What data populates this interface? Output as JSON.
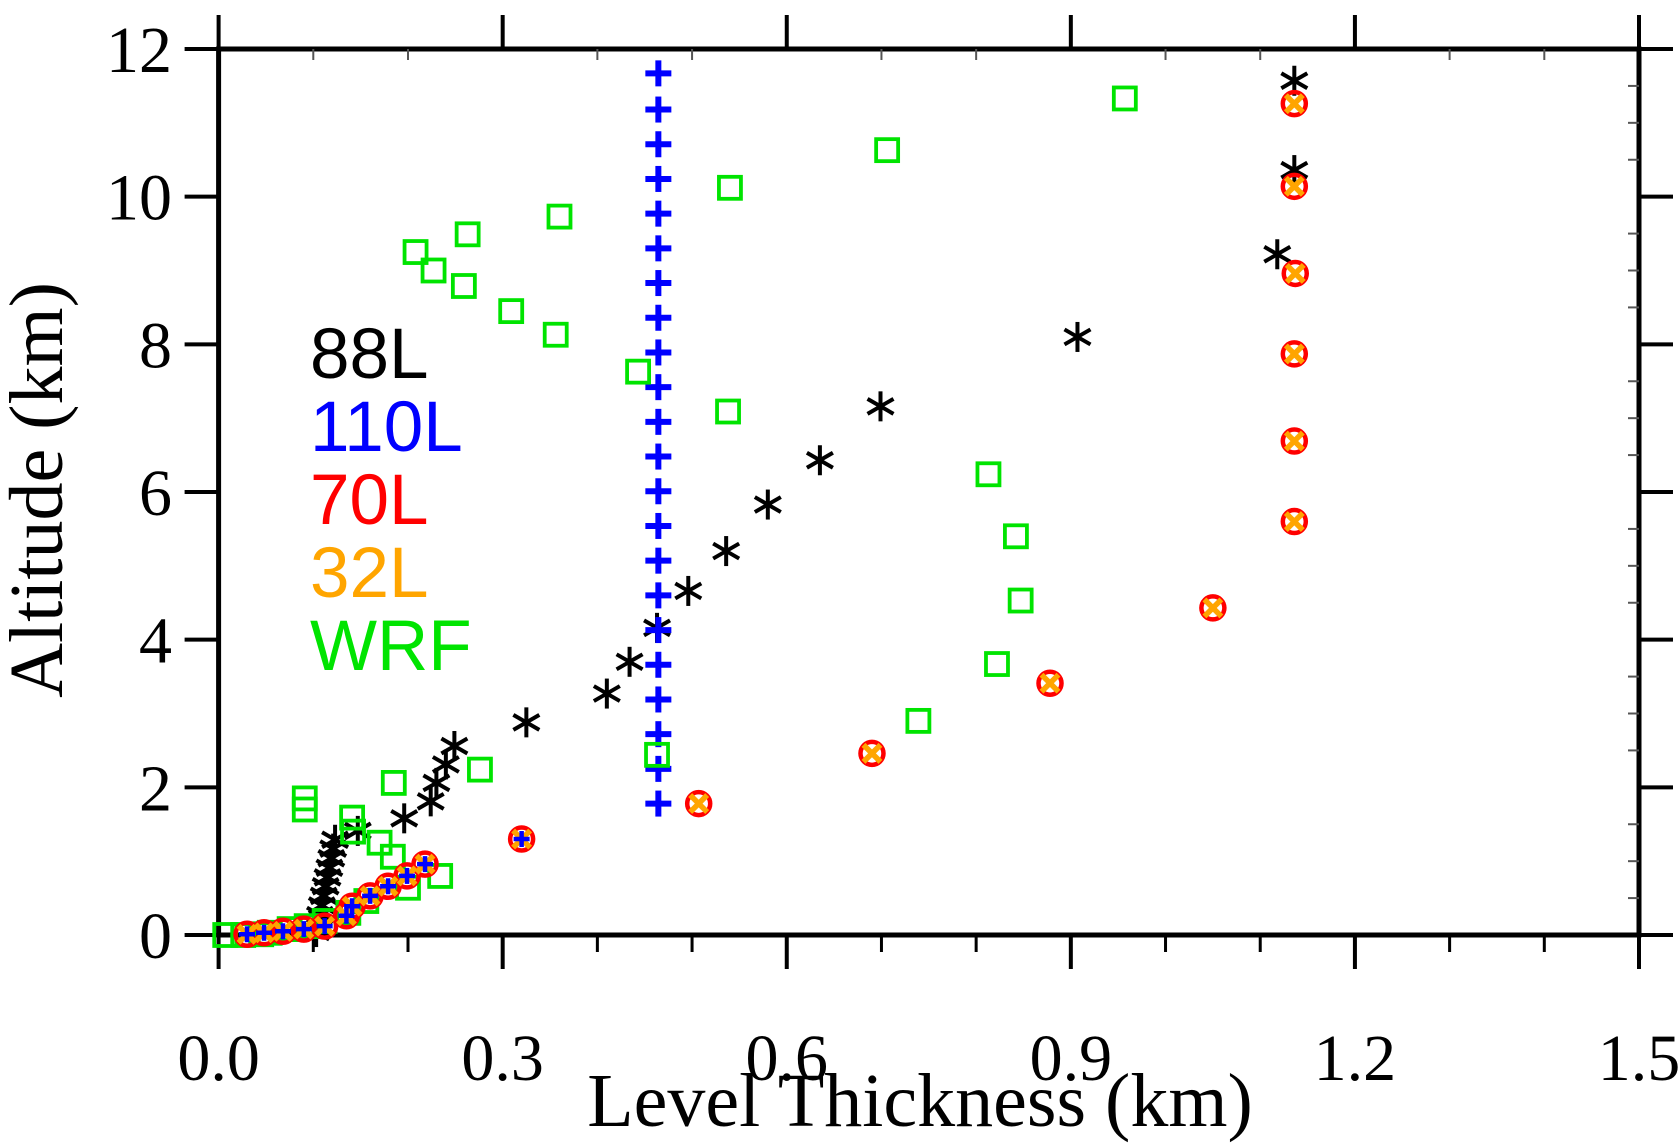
{
  "chart_data": {
    "type": "scatter",
    "title": "",
    "xlabel": "Level Thickness (km)",
    "ylabel": "Altitude (km)",
    "xlim": [
      0.0,
      1.5
    ],
    "ylim": [
      0,
      12
    ],
    "x_major_ticks": [
      0.0,
      0.3,
      0.6,
      0.9,
      1.2,
      1.5
    ],
    "x_tick_labels": [
      "0.0",
      "0.3",
      "0.6",
      "0.9",
      "1.2",
      "1.5"
    ],
    "x_minor_step": 0.1,
    "y_major_ticks": [
      0,
      2,
      4,
      6,
      8,
      10,
      12
    ],
    "y_tick_labels": [
      "0",
      "2",
      "4",
      "6",
      "8",
      "10",
      "12"
    ],
    "y_minor_step": 0.5,
    "grid": false,
    "frame_color": "#000000",
    "background": "#ffffff",
    "legend_position": "inside-upper-left",
    "legend": [
      {
        "label": "88L",
        "color": "#000000"
      },
      {
        "label": "110L",
        "color": "#0000FF"
      },
      {
        "label": "70L",
        "color": "#FF0000"
      },
      {
        "label": "32L",
        "color": "#FFA500"
      },
      {
        "label": "WRF",
        "color": "#00E400"
      }
    ],
    "series": [
      {
        "name": "88L",
        "color": "#000000",
        "marker": "asterisk",
        "points": [
          [
            0.103,
            0.04
          ],
          [
            0.105,
            0.15
          ],
          [
            0.107,
            0.27
          ],
          [
            0.109,
            0.4
          ],
          [
            0.111,
            0.53
          ],
          [
            0.113,
            0.66
          ],
          [
            0.115,
            0.78
          ],
          [
            0.117,
            0.91
          ],
          [
            0.119,
            1.04
          ],
          [
            0.121,
            1.17
          ],
          [
            0.123,
            1.29
          ],
          [
            0.147,
            1.41
          ],
          [
            0.196,
            1.58
          ],
          [
            0.224,
            1.81
          ],
          [
            0.23,
            2.06
          ],
          [
            0.24,
            2.31
          ],
          [
            0.249,
            2.56
          ],
          [
            0.325,
            2.88
          ],
          [
            0.41,
            3.27
          ],
          [
            0.434,
            3.7
          ],
          [
            0.463,
            4.16
          ],
          [
            0.496,
            4.66
          ],
          [
            0.536,
            5.2
          ],
          [
            0.58,
            5.83
          ],
          [
            0.635,
            6.43
          ],
          [
            0.699,
            7.16
          ],
          [
            0.907,
            8.1
          ],
          [
            1.118,
            9.22
          ],
          [
            1.136,
            10.36
          ],
          [
            1.136,
            11.57
          ]
        ]
      },
      {
        "name": "110L",
        "color": "#0000FF",
        "marker": "plus",
        "points": [
          [
            0.03,
            0.01
          ],
          [
            0.048,
            0.03
          ],
          [
            0.068,
            0.05
          ],
          [
            0.09,
            0.08
          ],
          [
            0.112,
            0.12
          ],
          [
            0.135,
            0.26
          ],
          [
            0.141,
            0.39
          ],
          [
            0.16,
            0.53
          ],
          [
            0.179,
            0.66
          ],
          [
            0.199,
            0.8
          ],
          [
            0.218,
            0.96
          ],
          [
            0.32,
            1.3
          ],
          [
            0.4644,
            1.78
          ],
          [
            0.4644,
            2.25
          ],
          [
            0.4644,
            2.72
          ],
          [
            0.4644,
            3.19
          ],
          [
            0.4644,
            3.66
          ],
          [
            0.4644,
            4.13
          ],
          [
            0.4644,
            4.6
          ],
          [
            0.4644,
            5.07
          ],
          [
            0.4644,
            5.54
          ],
          [
            0.4644,
            6.01
          ],
          [
            0.4644,
            6.48
          ],
          [
            0.4644,
            6.95
          ],
          [
            0.4644,
            7.42
          ],
          [
            0.4644,
            7.89
          ],
          [
            0.4644,
            8.36
          ],
          [
            0.4644,
            8.83
          ],
          [
            0.4644,
            9.3
          ],
          [
            0.4644,
            9.77
          ],
          [
            0.4644,
            10.24
          ],
          [
            0.4644,
            10.71
          ],
          [
            0.4644,
            11.18
          ],
          [
            0.4644,
            11.67
          ]
        ]
      },
      {
        "name": "70L",
        "color": "#FF0000",
        "marker": "circle-open",
        "points": [
          [
            0.03,
            0.01
          ],
          [
            0.048,
            0.03
          ],
          [
            0.068,
            0.05
          ],
          [
            0.09,
            0.08
          ],
          [
            0.112,
            0.12
          ],
          [
            0.135,
            0.26
          ],
          [
            0.141,
            0.39
          ],
          [
            0.16,
            0.53
          ],
          [
            0.179,
            0.66
          ],
          [
            0.199,
            0.8
          ],
          [
            0.218,
            0.96
          ],
          [
            0.32,
            1.3
          ],
          [
            0.507,
            1.78
          ],
          [
            0.69,
            2.46
          ],
          [
            0.878,
            3.41
          ],
          [
            1.05,
            4.43
          ],
          [
            1.136,
            5.6
          ],
          [
            1.136,
            6.69
          ],
          [
            1.136,
            7.87
          ],
          [
            1.137,
            8.96
          ],
          [
            1.136,
            10.14
          ],
          [
            1.136,
            11.26
          ]
        ]
      },
      {
        "name": "32L",
        "color": "#FFA500",
        "marker": "x-cross",
        "points": [
          [
            0.03,
            0.01
          ],
          [
            0.048,
            0.03
          ],
          [
            0.068,
            0.05
          ],
          [
            0.09,
            0.08
          ],
          [
            0.112,
            0.12
          ],
          [
            0.135,
            0.26
          ],
          [
            0.141,
            0.39
          ],
          [
            0.16,
            0.53
          ],
          [
            0.179,
            0.66
          ],
          [
            0.199,
            0.8
          ],
          [
            0.218,
            0.96
          ],
          [
            0.32,
            1.3
          ],
          [
            0.507,
            1.78
          ],
          [
            0.69,
            2.46
          ],
          [
            0.878,
            3.41
          ],
          [
            1.05,
            4.43
          ],
          [
            1.136,
            5.6
          ],
          [
            1.136,
            6.69
          ],
          [
            1.136,
            7.87
          ],
          [
            1.137,
            8.96
          ],
          [
            1.136,
            10.14
          ],
          [
            1.136,
            11.26
          ]
        ]
      },
      {
        "name": "WRF",
        "color": "#00E400",
        "marker": "square-open",
        "points": [
          [
            0.007,
            0.0
          ],
          [
            0.026,
            0.0
          ],
          [
            0.045,
            0.01
          ],
          [
            0.054,
            0.03
          ],
          [
            0.075,
            0.08
          ],
          [
            0.093,
            0.12
          ],
          [
            0.112,
            0.19
          ],
          [
            0.137,
            0.3
          ],
          [
            0.156,
            0.46
          ],
          [
            0.2,
            0.64
          ],
          [
            0.234,
            0.8
          ],
          [
            0.184,
            1.06
          ],
          [
            0.17,
            1.25
          ],
          [
            0.142,
            1.4
          ],
          [
            0.141,
            1.59
          ],
          [
            0.091,
            1.7
          ],
          [
            0.091,
            1.85
          ],
          [
            0.185,
            2.06
          ],
          [
            0.276,
            2.24
          ],
          [
            0.463,
            2.44
          ],
          [
            0.739,
            2.9
          ],
          [
            0.822,
            3.67
          ],
          [
            0.847,
            4.53
          ],
          [
            0.842,
            5.4
          ],
          [
            0.813,
            6.24
          ],
          [
            0.538,
            7.09
          ],
          [
            0.443,
            7.63
          ],
          [
            0.356,
            8.13
          ],
          [
            0.309,
            8.45
          ],
          [
            0.259,
            8.79
          ],
          [
            0.227,
            9.0
          ],
          [
            0.208,
            9.25
          ],
          [
            0.263,
            9.49
          ],
          [
            0.36,
            9.73
          ],
          [
            0.54,
            10.12
          ],
          [
            0.706,
            10.63
          ],
          [
            0.957,
            11.33
          ]
        ]
      }
    ]
  }
}
